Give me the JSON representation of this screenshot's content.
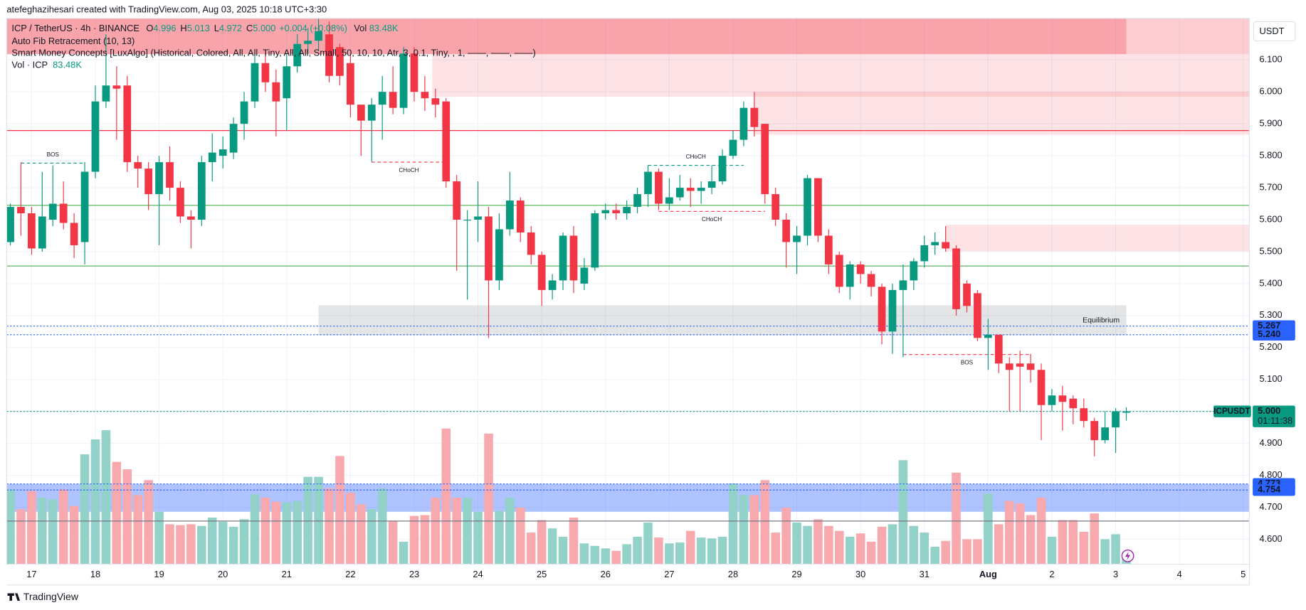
{
  "chart_data": {
    "type": "candlestick",
    "header": "atefeghazihesari created with TradingView.com, Aug 03, 2025 10:18 UTC+3:30",
    "title": "ICP / TetherUS · 4h · BINANCE",
    "ohlc_legend": [
      {
        "key": "O",
        "value": "4.996"
      },
      {
        "key": "H",
        "value": "5.013"
      },
      {
        "key": "L",
        "value": "4.972"
      },
      {
        "key": "C",
        "value": "5.000"
      }
    ],
    "change": "+0.004 (+0.08%)",
    "vol_key": "Vol",
    "vol_value": "83.48K",
    "indicators": [
      "Auto Fib Retracement (10, 13)",
      "Smart Money Concepts [LuxAlgo] (Historical, Colored, All, All, Tiny, All, All, Small, 50, 10, 10, Atr, 3, 0.1, Tiny, , 1, ——, ——, ——)"
    ],
    "volume_legend": {
      "name": "Vol · ICP",
      "value": "83.48K"
    },
    "currency": "USDT",
    "brand": "TradingView",
    "up_color": "#089981",
    "down_color": "#f23645",
    "volume_up_color": "#92d2c8",
    "volume_down_color": "#f7a9ae",
    "grid": true,
    "x": [
      0,
      1,
      2,
      3,
      4,
      5,
      6,
      7,
      8,
      9,
      10,
      11,
      12,
      13,
      14,
      15,
      16,
      17,
      18,
      19,
      20,
      21,
      22,
      23,
      24,
      25,
      26,
      27,
      28,
      29,
      30,
      31,
      32,
      33,
      34,
      35,
      36,
      37,
      38,
      39,
      40,
      41,
      42,
      43,
      44,
      45,
      46,
      47,
      48,
      49,
      50,
      51,
      52,
      53,
      54,
      55,
      56,
      57,
      58,
      59,
      60,
      61,
      62,
      63,
      64,
      65,
      66,
      67,
      68,
      69,
      70,
      71,
      72,
      73,
      74,
      75,
      76,
      77,
      78,
      79,
      80,
      81,
      82,
      83,
      84,
      85,
      86,
      87,
      88,
      89,
      90,
      91,
      92,
      93,
      94,
      95,
      96,
      97,
      98,
      99,
      100,
      101,
      102,
      103,
      104,
      105
    ],
    "open": [
      5.53,
      5.64,
      5.62,
      5.51,
      5.6,
      5.65,
      5.59,
      5.53,
      5.75,
      5.97,
      6.02,
      6.02,
      5.78,
      5.76,
      5.68,
      5.78,
      5.7,
      5.61,
      5.6,
      5.78,
      5.8,
      5.81,
      5.9,
      5.97,
      6.09,
      6.03,
      5.98,
      6.08,
      6.15,
      6.16,
      6.18,
      6.14,
      6.09,
      5.96,
      5.91,
      5.96,
      6.0,
      5.95,
      6.12,
      6.0,
      5.98,
      5.97,
      5.72,
      5.6,
      5.6,
      5.61,
      5.41,
      5.57,
      5.66,
      5.56,
      5.49,
      5.38,
      5.41,
      5.55,
      5.4,
      5.45,
      5.62,
      5.63,
      5.62,
      5.64,
      5.68,
      5.75,
      5.65,
      5.67,
      5.7,
      5.69,
      5.7,
      5.72,
      5.8,
      5.85,
      5.95,
      5.9,
      5.68,
      5.6,
      5.53,
      5.55,
      5.73,
      5.55,
      5.49,
      5.39,
      5.46,
      5.43,
      5.39,
      5.25,
      5.38,
      5.41,
      5.47,
      5.52,
      5.53,
      5.51,
      5.4,
      5.37,
      5.23,
      5.24,
      5.15,
      5.15,
      5.15,
      5.13,
      5.02,
      5.05,
      5.04,
      5.01,
      4.97,
      4.91,
      4.95,
      4.996
    ],
    "high": [
      5.65,
      5.78,
      5.64,
      5.75,
      5.77,
      5.72,
      5.62,
      5.78,
      6.02,
      6.18,
      6.08,
      6.05,
      5.8,
      5.78,
      5.8,
      5.83,
      5.72,
      5.63,
      5.8,
      5.87,
      5.86,
      5.92,
      6.0,
      6.12,
      6.12,
      6.07,
      6.12,
      6.18,
      6.2,
      6.23,
      6.22,
      6.15,
      6.12,
      5.96,
      5.98,
      6.05,
      6.08,
      6.14,
      6.14,
      6.05,
      6.01,
      5.98,
      5.74,
      5.63,
      5.72,
      5.64,
      5.62,
      5.75,
      5.67,
      5.58,
      5.5,
      5.43,
      5.56,
      5.58,
      5.48,
      5.63,
      5.65,
      5.65,
      5.66,
      5.7,
      5.77,
      5.76,
      5.73,
      5.74,
      5.73,
      5.72,
      5.77,
      5.82,
      5.88,
      5.97,
      6.0,
      5.9,
      5.7,
      5.62,
      5.58,
      5.74,
      5.73,
      5.57,
      5.5,
      5.47,
      5.47,
      5.44,
      5.4,
      5.4,
      5.46,
      5.48,
      5.55,
      5.56,
      5.58,
      5.52,
      5.41,
      5.38,
      5.29,
      5.24,
      5.17,
      5.19,
      5.18,
      5.15,
      5.07,
      5.08,
      5.05,
      5.04,
      4.98,
      5.0,
      5.01,
      5.013
    ],
    "low": [
      5.52,
      5.55,
      5.49,
      5.5,
      5.58,
      5.57,
      5.48,
      5.46,
      5.73,
      5.95,
      5.85,
      5.75,
      5.7,
      5.63,
      5.52,
      5.66,
      5.59,
      5.51,
      5.58,
      5.72,
      5.76,
      5.79,
      5.85,
      5.95,
      6.0,
      5.86,
      5.88,
      6.06,
      6.12,
      6.13,
      6.03,
      6.02,
      5.92,
      5.8,
      5.78,
      5.85,
      5.93,
      5.93,
      5.97,
      5.94,
      5.92,
      5.7,
      5.44,
      5.35,
      5.53,
      5.23,
      5.38,
      5.55,
      5.53,
      5.46,
      5.33,
      5.35,
      5.38,
      5.37,
      5.38,
      5.44,
      5.6,
      5.6,
      5.6,
      5.62,
      5.64,
      5.63,
      5.63,
      5.66,
      5.64,
      5.65,
      5.68,
      5.71,
      5.79,
      5.83,
      5.86,
      5.65,
      5.58,
      5.45,
      5.43,
      5.52,
      5.53,
      5.43,
      5.37,
      5.35,
      5.4,
      5.36,
      5.21,
      5.18,
      5.17,
      5.38,
      5.45,
      5.49,
      5.5,
      5.3,
      5.31,
      5.22,
      5.13,
      5.12,
      5.0,
      5.0,
      5.09,
      4.91,
      5.0,
      4.94,
      4.96,
      4.95,
      4.86,
      4.9,
      4.87,
      4.972
    ],
    "close": [
      5.64,
      5.62,
      5.51,
      5.61,
      5.65,
      5.59,
      5.52,
      5.75,
      5.97,
      6.02,
      6.01,
      5.78,
      5.76,
      5.68,
      5.78,
      5.7,
      5.61,
      5.6,
      5.78,
      5.81,
      5.82,
      5.9,
      5.97,
      6.09,
      6.03,
      5.97,
      6.08,
      6.15,
      6.16,
      6.19,
      6.05,
      6.05,
      5.96,
      5.91,
      5.96,
      6.0,
      5.95,
      6.12,
      6.0,
      5.98,
      5.96,
      5.72,
      5.6,
      5.6,
      5.61,
      5.41,
      5.57,
      5.66,
      5.56,
      5.49,
      5.38,
      5.41,
      5.55,
      5.41,
      5.45,
      5.62,
      5.63,
      5.62,
      5.64,
      5.68,
      5.75,
      5.65,
      5.67,
      5.7,
      5.69,
      5.7,
      5.72,
      5.8,
      5.85,
      5.95,
      5.89,
      5.68,
      5.6,
      5.53,
      5.55,
      5.73,
      5.55,
      5.46,
      5.39,
      5.46,
      5.43,
      5.39,
      5.25,
      5.38,
      5.41,
      5.47,
      5.52,
      5.53,
      5.51,
      5.32,
      5.33,
      5.23,
      5.24,
      5.15,
      5.13,
      5.14,
      5.13,
      5.02,
      5.05,
      5.03,
      5.01,
      4.97,
      4.91,
      4.95,
      5.0,
      5.0
    ],
    "volume": [
      900,
      660,
      880,
      800,
      780,
      900,
      700,
      1320,
      1500,
      1610,
      1230,
      1140,
      830,
      1010,
      630,
      480,
      470,
      480,
      460,
      560,
      510,
      450,
      540,
      840,
      800,
      750,
      740,
      760,
      1050,
      1050,
      910,
      1300,
      860,
      720,
      660,
      910,
      520,
      270,
      580,
      590,
      800,
      1630,
      800,
      800,
      630,
      1570,
      640,
      800,
      680,
      380,
      530,
      430,
      330,
      560,
      250,
      220,
      190,
      160,
      240,
      330,
      500,
      320,
      250,
      260,
      400,
      320,
      310,
      330,
      970,
      830,
      830,
      1010,
      380,
      680,
      500,
      460,
      540,
      460,
      400,
      330,
      370,
      270,
      450,
      480,
      1250,
      460,
      380,
      210,
      280,
      1100,
      300,
      300,
      850,
      480,
      760,
      730,
      590,
      800,
      330,
      530,
      530,
      390,
      610,
      300,
      360,
      83.48
    ],
    "xlim": [
      -0.345,
      116.58
    ],
    "xticks": [
      {
        "value": 2,
        "label": "17"
      },
      {
        "value": 8,
        "label": "18"
      },
      {
        "value": 14,
        "label": "19"
      },
      {
        "value": 20,
        "label": "20"
      },
      {
        "value": 26,
        "label": "21"
      },
      {
        "value": 32,
        "label": "22"
      },
      {
        "value": 38,
        "label": "23"
      },
      {
        "value": 44,
        "label": "24"
      },
      {
        "value": 50,
        "label": "25"
      },
      {
        "value": 56,
        "label": "26"
      },
      {
        "value": 62,
        "label": "27"
      },
      {
        "value": 68,
        "label": "28"
      },
      {
        "value": 74,
        "label": "29"
      },
      {
        "value": 80,
        "label": "30"
      },
      {
        "value": 86,
        "label": "31"
      },
      {
        "value": 92,
        "label": "Aug"
      },
      {
        "value": 98,
        "label": "2"
      },
      {
        "value": 104,
        "label": "3"
      },
      {
        "value": 110,
        "label": "4"
      },
      {
        "value": 116,
        "label": "5"
      }
    ],
    "ylim": [
      4.522,
      6.23
    ],
    "yticks": [
      {
        "value": 4.6,
        "label": "4.600"
      },
      {
        "value": 4.7,
        "label": "4.700"
      },
      {
        "value": 4.8,
        "label": "4.800"
      },
      {
        "value": 4.9,
        "label": "4.900"
      },
      {
        "value": 5.0,
        "label": "5.000"
      },
      {
        "value": 5.1,
        "label": "5.100"
      },
      {
        "value": 5.2,
        "label": "5.200"
      },
      {
        "value": 5.3,
        "label": "5.300"
      },
      {
        "value": 5.4,
        "label": "5.400"
      },
      {
        "value": 5.5,
        "label": "5.500"
      },
      {
        "value": 5.6,
        "label": "5.600"
      },
      {
        "value": 5.7,
        "label": "5.700"
      },
      {
        "value": 5.8,
        "label": "5.800"
      },
      {
        "value": 5.9,
        "label": "5.900"
      },
      {
        "value": 6.0,
        "label": "6.000"
      },
      {
        "value": 6.1,
        "label": "6.100"
      }
    ],
    "zones": [
      {
        "x": [
          -0.345,
          105
        ],
        "y": [
          6.118,
          6.23
        ],
        "color": "rgba(242,54,69,0.45)"
      },
      {
        "x": [
          105,
          116.58
        ],
        "y": [
          6.118,
          6.23
        ],
        "color": "rgba(242,54,69,0.25)"
      },
      {
        "x": [
          39.7,
          116.58
        ],
        "y": [
          5.985,
          6.118
        ],
        "color": "rgba(242,54,69,0.14)"
      },
      {
        "x": [
          70,
          116.58
        ],
        "y": [
          5.866,
          6.0
        ],
        "color": "rgba(242,54,69,0.14)"
      },
      {
        "x": [
          88,
          116.58
        ],
        "y": [
          5.501,
          5.584
        ],
        "color": "rgba(242,54,69,0.14)"
      },
      {
        "x": [
          29,
          105
        ],
        "y": [
          5.238,
          5.332
        ],
        "color": "rgba(120,123,134,0.2)",
        "label": "Equilibrium"
      },
      {
        "x": [
          -0.345,
          116.58
        ],
        "y": [
          4.686,
          4.773
        ],
        "color": "rgba(41,98,255,0.38)"
      }
    ],
    "levels": [
      {
        "value": 5.879,
        "color": "#f23645",
        "dashed": false
      },
      {
        "value": 5.645,
        "color": "#4caf50",
        "dashed": false
      },
      {
        "value": 5.455,
        "color": "#4caf50",
        "dashed": false
      },
      {
        "value": 5.267,
        "color": "#2962ff",
        "dashed": true,
        "axis_label": "5.267"
      },
      {
        "value": 5.24,
        "color": "#2962ff",
        "dashed": true,
        "axis_label": "5.240"
      },
      {
        "value": 4.773,
        "color": "#2962ff",
        "dashed": true,
        "axis_label": "4.773"
      },
      {
        "value": 4.754,
        "color": "#2962ff",
        "dashed": true,
        "axis_label": "4.754"
      },
      {
        "value": 4.657,
        "color": "#787b86",
        "dashed": false
      },
      {
        "value": 5.0,
        "color": "#089981",
        "dashed": true,
        "axis_label": "5.000",
        "name": "ICPUSDT",
        "countdown": "01:11:38"
      }
    ],
    "structures": [
      {
        "x": [
          1,
          7
        ],
        "value": 5.777,
        "label": "BOS",
        "color": "#089981"
      },
      {
        "x": [
          34,
          41
        ],
        "value": 5.78,
        "label": "CHoCH",
        "color": "#f23645"
      },
      {
        "x": [
          60,
          69
        ],
        "value": 5.77,
        "label": "CHoCH",
        "color": "#089981"
      },
      {
        "x": [
          61,
          71
        ],
        "value": 5.626,
        "label": "CHoCH",
        "color": "#f23645"
      },
      {
        "x": [
          84,
          96
        ],
        "value": 5.178,
        "label": "BOS",
        "color": "#f23645"
      }
    ]
  }
}
